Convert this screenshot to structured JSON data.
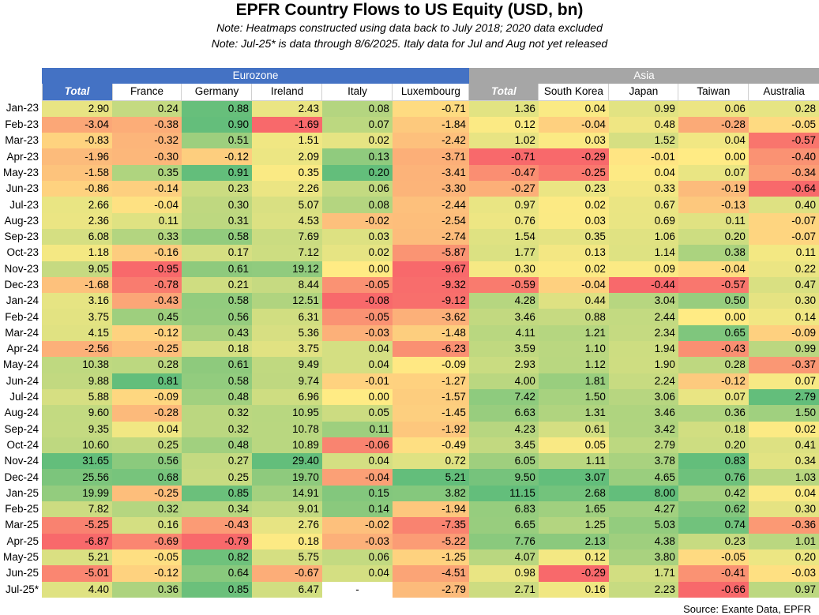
{
  "title": "EPFR Country Flows to US Equity (USD, bn)",
  "notes": [
    "Note: Heatmaps constructed using data back to July 2018; 2020 data excluded",
    "Note: Jul-25* is data through 8/6/2025. Italy data for Jul and Aug not yet released"
  ],
  "source": "Source: Exante Data, EPFR",
  "groups": {
    "eurozone": "Eurozone",
    "asia": "Asia"
  },
  "colors": {
    "eurozone_header": "#4472c4",
    "asia_header": "#a6a6a6",
    "low": "#f8696b",
    "mid": "#ffeb84",
    "high": "#63be7b"
  },
  "chart_data": {
    "type": "heatmap",
    "title": "EPFR Country Flows to US Equity (USD, bn)",
    "columns": [
      "Total",
      "France",
      "Germany",
      "Ireland",
      "Italy",
      "Luxembourg",
      "Total",
      "South Korea",
      "Japan",
      "Taiwan",
      "Australia"
    ],
    "rows": [
      "Jan-23",
      "Feb-23",
      "Mar-23",
      "Apr-23",
      "May-23",
      "Jun-23",
      "Jul-23",
      "Aug-23",
      "Sep-23",
      "Oct-23",
      "Nov-23",
      "Dec-23",
      "Jan-24",
      "Feb-24",
      "Mar-24",
      "Apr-24",
      "May-24",
      "Jun-24",
      "Jul-24",
      "Aug-24",
      "Sep-24",
      "Oct-24",
      "Nov-24",
      "Dec-24",
      "Jan-25",
      "Feb-25",
      "Mar-25",
      "Apr-25",
      "May-25",
      "Jun-25",
      "Jul-25*"
    ],
    "values": [
      [
        "2.90",
        "0.24",
        "0.88",
        "2.43",
        "0.08",
        "-0.71",
        "1.36",
        "0.04",
        "0.99",
        "0.06",
        "0.28"
      ],
      [
        "-3.04",
        "-0.38",
        "0.90",
        "-1.69",
        "0.07",
        "-1.84",
        "0.12",
        "-0.04",
        "0.48",
        "-0.28",
        "-0.05"
      ],
      [
        "-0.83",
        "-0.32",
        "0.51",
        "1.51",
        "0.02",
        "-2.42",
        "1.02",
        "0.03",
        "1.52",
        "0.04",
        "-0.57"
      ],
      [
        "-1.96",
        "-0.30",
        "-0.12",
        "2.09",
        "0.13",
        "-3.71",
        "-0.71",
        "-0.29",
        "-0.01",
        "0.00",
        "-0.40"
      ],
      [
        "-1.58",
        "0.35",
        "0.91",
        "0.35",
        "0.20",
        "-3.41",
        "-0.47",
        "-0.25",
        "0.04",
        "0.07",
        "-0.34"
      ],
      [
        "-0.86",
        "-0.14",
        "0.23",
        "2.26",
        "0.06",
        "-3.30",
        "-0.27",
        "0.23",
        "0.33",
        "-0.19",
        "-0.64"
      ],
      [
        "2.66",
        "-0.04",
        "0.30",
        "5.07",
        "0.08",
        "-2.44",
        "0.97",
        "0.02",
        "0.67",
        "-0.13",
        "0.40"
      ],
      [
        "2.36",
        "0.11",
        "0.31",
        "4.53",
        "-0.02",
        "-2.54",
        "0.76",
        "0.03",
        "0.69",
        "0.11",
        "-0.07"
      ],
      [
        "6.08",
        "0.33",
        "0.58",
        "7.69",
        "0.03",
        "-2.74",
        "1.54",
        "0.35",
        "1.06",
        "0.20",
        "-0.07"
      ],
      [
        "1.18",
        "-0.16",
        "0.17",
        "7.12",
        "0.02",
        "-5.87",
        "1.77",
        "0.13",
        "1.14",
        "0.38",
        "0.11"
      ],
      [
        "9.05",
        "-0.95",
        "0.61",
        "19.12",
        "0.00",
        "-9.67",
        "0.30",
        "0.02",
        "0.09",
        "-0.04",
        "0.22"
      ],
      [
        "-1.68",
        "-0.78",
        "0.21",
        "8.44",
        "-0.05",
        "-9.32",
        "-0.59",
        "-0.04",
        "-0.44",
        "-0.57",
        "0.47"
      ],
      [
        "3.16",
        "-0.43",
        "0.58",
        "12.51",
        "-0.08",
        "-9.12",
        "4.28",
        "0.44",
        "3.04",
        "0.50",
        "0.30"
      ],
      [
        "3.75",
        "0.45",
        "0.56",
        "6.31",
        "-0.05",
        "-3.62",
        "3.46",
        "0.88",
        "2.44",
        "0.00",
        "0.14"
      ],
      [
        "4.15",
        "-0.12",
        "0.43",
        "5.36",
        "-0.03",
        "-1.48",
        "4.11",
        "1.21",
        "2.34",
        "0.65",
        "-0.09"
      ],
      [
        "-2.56",
        "-0.25",
        "0.18",
        "3.75",
        "0.04",
        "-6.23",
        "3.59",
        "1.10",
        "1.94",
        "-0.43",
        "0.99"
      ],
      [
        "10.38",
        "0.28",
        "0.61",
        "9.49",
        "0.04",
        "-0.09",
        "2.93",
        "1.12",
        "1.90",
        "0.28",
        "-0.37"
      ],
      [
        "9.88",
        "0.81",
        "0.58",
        "9.74",
        "-0.01",
        "-1.27",
        "4.00",
        "1.81",
        "2.24",
        "-0.12",
        "0.07"
      ],
      [
        "5.88",
        "-0.09",
        "0.48",
        "6.96",
        "0.00",
        "-1.57",
        "7.42",
        "1.50",
        "3.06",
        "0.07",
        "2.79"
      ],
      [
        "9.60",
        "-0.28",
        "0.32",
        "10.95",
        "0.05",
        "-1.45",
        "6.63",
        "1.31",
        "3.46",
        "0.36",
        "1.50"
      ],
      [
        "9.35",
        "0.04",
        "0.32",
        "10.78",
        "0.11",
        "-1.92",
        "4.23",
        "0.61",
        "3.42",
        "0.18",
        "0.02"
      ],
      [
        "10.60",
        "0.25",
        "0.48",
        "10.89",
        "-0.06",
        "-0.49",
        "3.45",
        "0.05",
        "2.79",
        "0.20",
        "0.41"
      ],
      [
        "31.65",
        "0.56",
        "0.27",
        "29.40",
        "0.04",
        "0.72",
        "6.05",
        "1.11",
        "3.78",
        "0.83",
        "0.34"
      ],
      [
        "25.56",
        "0.68",
        "0.25",
        "19.70",
        "-0.04",
        "5.21",
        "9.50",
        "3.07",
        "4.65",
        "0.76",
        "1.03"
      ],
      [
        "19.99",
        "-0.25",
        "0.85",
        "14.91",
        "0.15",
        "3.82",
        "11.15",
        "2.68",
        "8.00",
        "0.42",
        "0.04"
      ],
      [
        "7.82",
        "0.32",
        "0.34",
        "9.01",
        "0.14",
        "-1.94",
        "6.83",
        "1.65",
        "4.27",
        "0.62",
        "0.30"
      ],
      [
        "-5.25",
        "0.16",
        "-0.43",
        "2.76",
        "-0.02",
        "-7.35",
        "6.65",
        "1.25",
        "5.03",
        "0.74",
        "-0.36"
      ],
      [
        "-6.87",
        "-0.69",
        "-0.79",
        "0.18",
        "-0.03",
        "-5.22",
        "7.76",
        "2.13",
        "4.38",
        "0.23",
        "1.01"
      ],
      [
        "5.21",
        "-0.05",
        "0.82",
        "5.75",
        "0.06",
        "-1.25",
        "4.07",
        "0.12",
        "3.80",
        "-0.05",
        "0.20"
      ],
      [
        "-5.01",
        "-0.12",
        "0.64",
        "-0.67",
        "0.04",
        "-4.51",
        "0.98",
        "-0.29",
        "1.71",
        "-0.41",
        "-0.03"
      ],
      [
        "4.40",
        "0.36",
        "0.85",
        "6.47",
        "-",
        "-2.79",
        "2.71",
        "0.16",
        "2.23",
        "-0.66",
        "0.97"
      ]
    ]
  }
}
